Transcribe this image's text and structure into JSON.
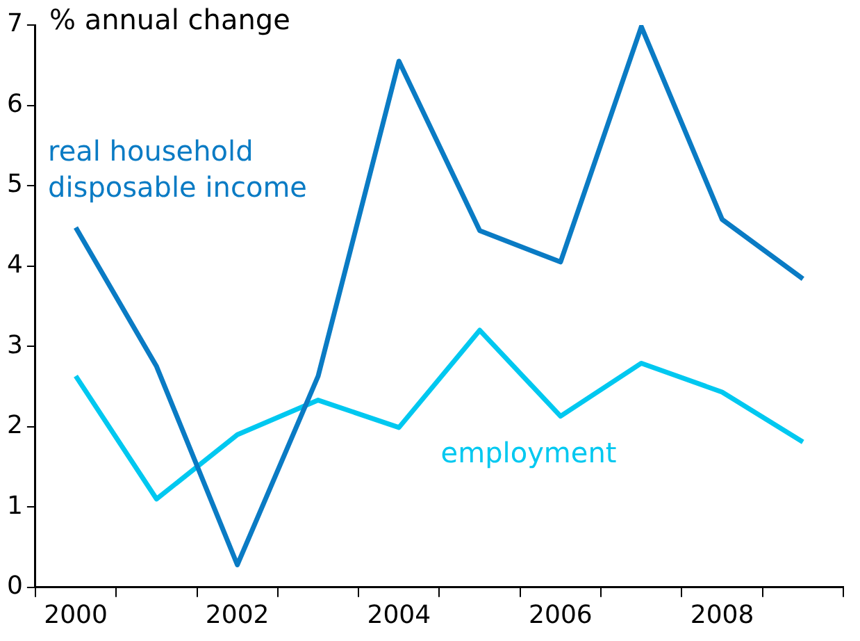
{
  "chart_data": {
    "type": "line",
    "ylabel": "% annual change",
    "categories": [
      "2000",
      null,
      "2002",
      null,
      "2004",
      null,
      "2006",
      null,
      "2008",
      null
    ],
    "series": [
      {
        "name": "real household disposable income",
        "color": "#0a7bc4",
        "values": [
          4.48,
          2.75,
          0.28,
          2.63,
          6.55,
          4.44,
          4.05,
          6.98,
          4.58,
          3.84
        ]
      },
      {
        "name": "employment",
        "color": "#00c8f0",
        "values": [
          2.63,
          1.1,
          1.9,
          2.33,
          1.99,
          3.2,
          2.13,
          2.79,
          2.43,
          1.81
        ]
      }
    ],
    "ylim": [
      0,
      7
    ],
    "yticks": [
      0,
      1,
      2,
      3,
      4,
      5,
      6,
      7
    ],
    "grid": false,
    "legend": false,
    "marker": "none",
    "line_style": "solid"
  }
}
